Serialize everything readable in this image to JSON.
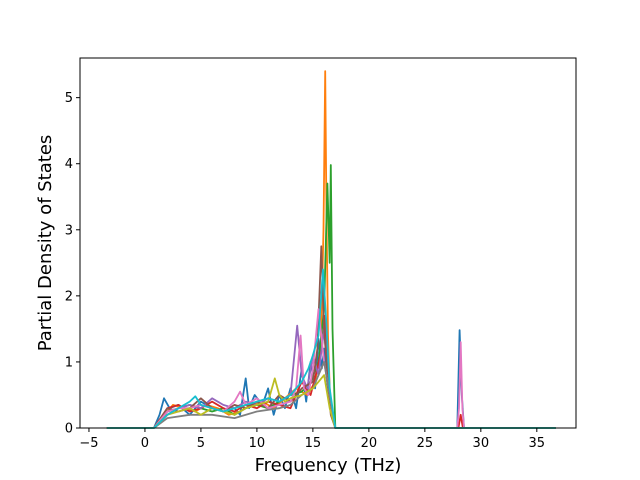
{
  "chart_data": {
    "type": "line",
    "title": "",
    "xlabel": "Frequency (THz)",
    "ylabel": "Partial Density of States",
    "xlim": [
      -5.8,
      38.5
    ],
    "ylim": [
      0,
      5.6
    ],
    "xticks": [
      -5,
      0,
      5,
      10,
      15,
      20,
      25,
      30,
      35
    ],
    "yticks": [
      0,
      1,
      2,
      3,
      4,
      5
    ],
    "grid": false,
    "legend": "none",
    "series": [
      {
        "color": "#1f77b4",
        "x": [
          -3.4,
          0.8,
          1.3,
          1.7,
          2.2,
          3,
          4,
          5,
          6,
          7,
          8,
          8.5,
          9,
          9.3,
          9.8,
          10.5,
          11,
          11.5,
          12,
          12.5,
          13,
          13.5,
          14,
          14.4,
          14.8,
          15.2,
          15.5,
          15.8,
          16,
          16.2,
          16.4,
          16.7,
          17,
          27.9,
          28.1,
          28.3,
          28.5,
          36.7
        ],
        "y": [
          0,
          0,
          0.2,
          0.45,
          0.3,
          0.35,
          0.2,
          0.4,
          0.3,
          0.25,
          0.3,
          0.2,
          0.75,
          0.3,
          0.5,
          0.35,
          0.6,
          0.2,
          0.5,
          0.3,
          0.6,
          0.3,
          0.9,
          0.4,
          1.0,
          0.6,
          1.35,
          0.9,
          1.2,
          0.8,
          0.5,
          0.2,
          0,
          0,
          1.48,
          0.5,
          0,
          0
        ]
      },
      {
        "color": "#ff7f0e",
        "x": [
          -3.4,
          0.8,
          1.5,
          2.5,
          3.5,
          4.5,
          5.5,
          6.5,
          7.5,
          8.5,
          9.5,
          10.5,
          11.5,
          12.5,
          13.5,
          14.5,
          15.2,
          15.7,
          15.95,
          16.1,
          16.2,
          16.35,
          16.5,
          16.7,
          17,
          36.7
        ],
        "y": [
          0,
          0,
          0.15,
          0.35,
          0.3,
          0.25,
          0.35,
          0.3,
          0.2,
          0.25,
          0.35,
          0.4,
          0.3,
          0.45,
          0.6,
          0.5,
          0.7,
          1.2,
          3.0,
          5.4,
          3.5,
          1.4,
          0.6,
          0.2,
          0,
          0
        ]
      },
      {
        "color": "#2ca02c",
        "x": [
          -3.4,
          0.8,
          2,
          3,
          4,
          5,
          6,
          7,
          8,
          9,
          10,
          11,
          12,
          13,
          14,
          14.8,
          15.5,
          16,
          16.3,
          16.5,
          16.6,
          16.75,
          17,
          36.7
        ],
        "y": [
          0,
          0,
          0.25,
          0.3,
          0.35,
          0.3,
          0.25,
          0.3,
          0.2,
          0.3,
          0.35,
          0.3,
          0.4,
          0.5,
          0.55,
          0.7,
          1.0,
          1.8,
          3.7,
          2.5,
          3.98,
          1.5,
          0,
          0
        ]
      },
      {
        "color": "#d62728",
        "x": [
          -3.4,
          0.8,
          2,
          3,
          4,
          5,
          6,
          7,
          8,
          9,
          10,
          11,
          12,
          13,
          14,
          14.8,
          15.4,
          15.8,
          16.1,
          16.3,
          16.6,
          17,
          28,
          28.2,
          28.4,
          36.7
        ],
        "y": [
          0,
          0,
          0.3,
          0.35,
          0.25,
          0.3,
          0.4,
          0.3,
          0.25,
          0.35,
          0.3,
          0.4,
          0.35,
          0.3,
          0.7,
          0.5,
          0.9,
          1.2,
          1.7,
          0.9,
          0.3,
          0,
          0,
          0.2,
          0,
          0
        ]
      },
      {
        "color": "#9467bd",
        "x": [
          -3.4,
          0.8,
          2,
          3,
          4,
          5,
          6,
          7,
          8,
          9,
          10,
          11,
          12,
          13,
          13.6,
          14,
          14.5,
          15,
          15.5,
          16,
          16.5,
          17,
          36.7
        ],
        "y": [
          0,
          0,
          0.2,
          0.3,
          0.35,
          0.3,
          0.45,
          0.35,
          0.3,
          0.4,
          0.35,
          0.45,
          0.4,
          0.5,
          1.55,
          0.8,
          0.6,
          1.1,
          0.8,
          1.5,
          0.4,
          0,
          0
        ]
      },
      {
        "color": "#8c564b",
        "x": [
          -3.4,
          0.8,
          2,
          3,
          4,
          5,
          6,
          7,
          8,
          9,
          10,
          11,
          12,
          13,
          14,
          15,
          15.4,
          15.75,
          16,
          16.3,
          16.6,
          17,
          36.7
        ],
        "y": [
          0,
          0,
          0.3,
          0.25,
          0.3,
          0.45,
          0.3,
          0.25,
          0.35,
          0.3,
          0.4,
          0.3,
          0.5,
          0.4,
          0.6,
          0.7,
          1.2,
          2.75,
          1.5,
          0.8,
          0.2,
          0,
          0
        ]
      },
      {
        "color": "#e377c2",
        "x": [
          -3.4,
          0.8,
          2,
          3,
          4,
          5,
          6,
          7,
          8,
          8.5,
          9,
          10,
          11,
          12,
          13,
          13.5,
          13.9,
          14.2,
          14.6,
          15,
          15.5,
          16,
          16.4,
          16.8,
          17,
          27.9,
          28.05,
          28.2,
          28.35,
          28.5,
          36.7
        ],
        "y": [
          0,
          0,
          0.25,
          0.3,
          0.3,
          0.35,
          0.3,
          0.25,
          0.4,
          0.55,
          0.35,
          0.45,
          0.3,
          0.35,
          0.4,
          0.6,
          1.4,
          0.6,
          0.5,
          0.9,
          1.8,
          1.0,
          0.6,
          0.2,
          0,
          0,
          0.3,
          1.3,
          0.3,
          0,
          0
        ]
      },
      {
        "color": "#7f7f7f",
        "x": [
          -3.4,
          0.8,
          2,
          4,
          6,
          8,
          10,
          12,
          13,
          14,
          15,
          15.5,
          16,
          16.5,
          17,
          36.7
        ],
        "y": [
          0,
          0,
          0.15,
          0.2,
          0.2,
          0.15,
          0.25,
          0.3,
          0.35,
          0.5,
          0.6,
          0.8,
          1.0,
          0.5,
          0,
          0
        ]
      },
      {
        "color": "#bcbd22",
        "x": [
          -3.4,
          0.8,
          2,
          3,
          4,
          5,
          6,
          7,
          8,
          9,
          10,
          11,
          11.6,
          12,
          12.5,
          13,
          14,
          15,
          15.5,
          16,
          16.5,
          17,
          36.7
        ],
        "y": [
          0,
          0,
          0.2,
          0.25,
          0.3,
          0.2,
          0.3,
          0.25,
          0.2,
          0.3,
          0.35,
          0.4,
          0.75,
          0.5,
          0.4,
          0.45,
          0.5,
          0.6,
          0.7,
          0.8,
          0.3,
          0,
          0
        ]
      },
      {
        "color": "#17becf",
        "x": [
          -3.4,
          0.8,
          2,
          3,
          4,
          4.5,
          5,
          6,
          7,
          8,
          9,
          10,
          11,
          12,
          13,
          14,
          14.6,
          15,
          15.5,
          15.9,
          16.2,
          16.5,
          17,
          36.7
        ],
        "y": [
          0,
          0,
          0.2,
          0.3,
          0.4,
          0.48,
          0.35,
          0.3,
          0.25,
          0.3,
          0.35,
          0.4,
          0.45,
          0.4,
          0.5,
          0.7,
          0.9,
          1.1,
          1.4,
          2.4,
          1.6,
          0.6,
          0,
          0
        ]
      }
    ]
  }
}
